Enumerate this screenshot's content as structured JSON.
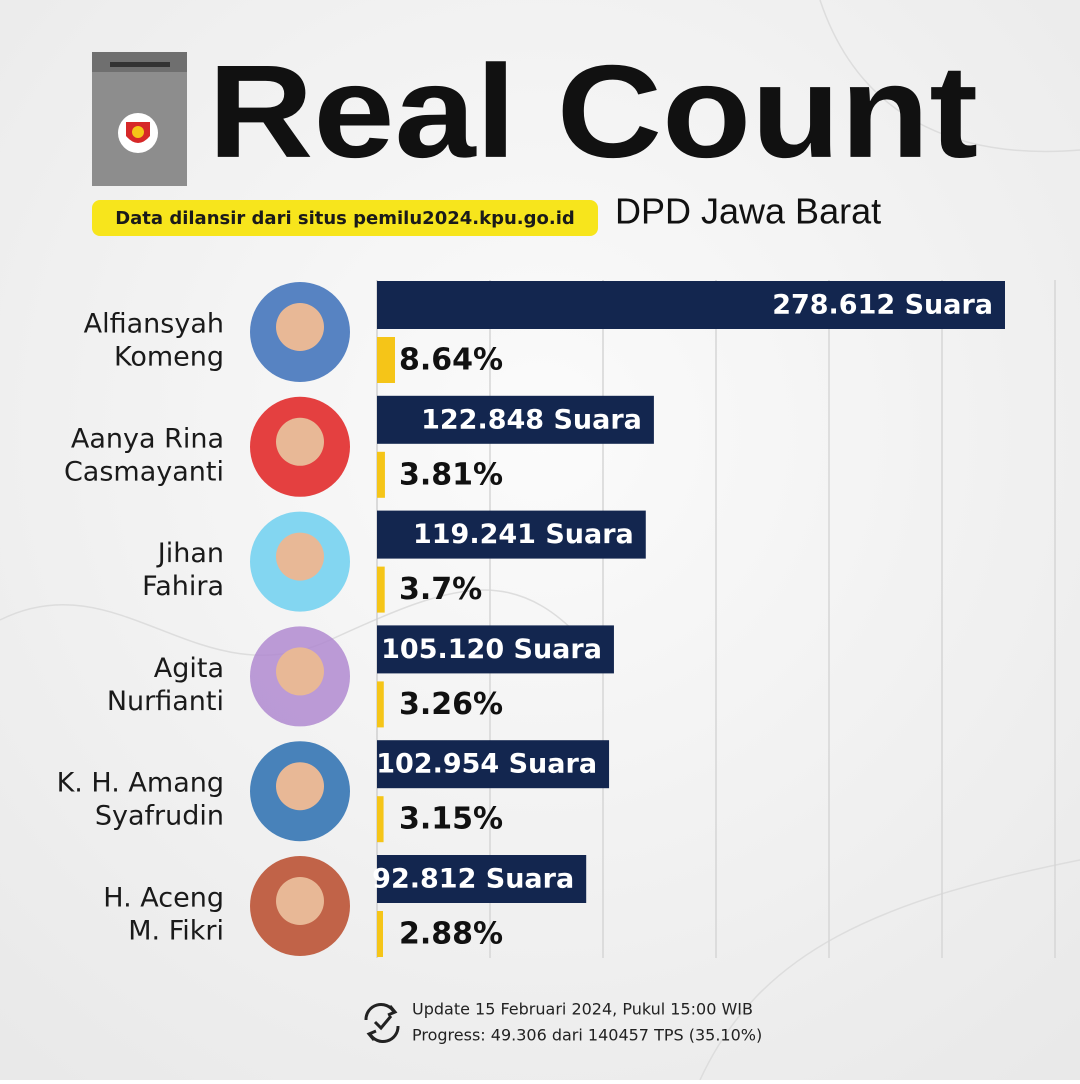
{
  "chart_data": {
    "type": "bar",
    "title": "Real Count",
    "subtitle": "DPD Jawa Barat",
    "source": "Data dilansir dari situs pemilu2024.kpu.go.id",
    "categories": [
      [
        "Alfiansyah",
        "Komeng"
      ],
      [
        "Aanya Rina",
        "Casmayanti"
      ],
      [
        "Jihan",
        "Fahira"
      ],
      [
        "Agita",
        "Nurfianti"
      ],
      [
        "K. H. Amang",
        "Syafrudin"
      ],
      [
        "H. Aceng",
        "M. Fikri"
      ]
    ],
    "series": [
      {
        "color": "#13264f",
        "values": [
          278612,
          122848,
          119241,
          105120,
          102954,
          92812
        ],
        "value_labels": [
          "278.612 Suara",
          "122.848 Suara",
          "119.241 Suara",
          "105.120 Suara",
          "102.954 Suara",
          "92.812 Suara"
        ]
      },
      {
        "color": "#f5c518",
        "values": [
          8.64,
          3.81,
          3.7,
          3.26,
          3.15,
          2.88
        ],
        "value_labels": [
          "8.64%",
          "3.81%",
          "3.7%",
          "3.26%",
          "3.15%",
          "2.88%"
        ]
      }
    ],
    "grid": true
  },
  "footer": [
    "Update 15 Februari 2024, Pukul 15:00 WIB",
    "Progress: 49.306 dari 140457 TPS (35.10%)"
  ]
}
